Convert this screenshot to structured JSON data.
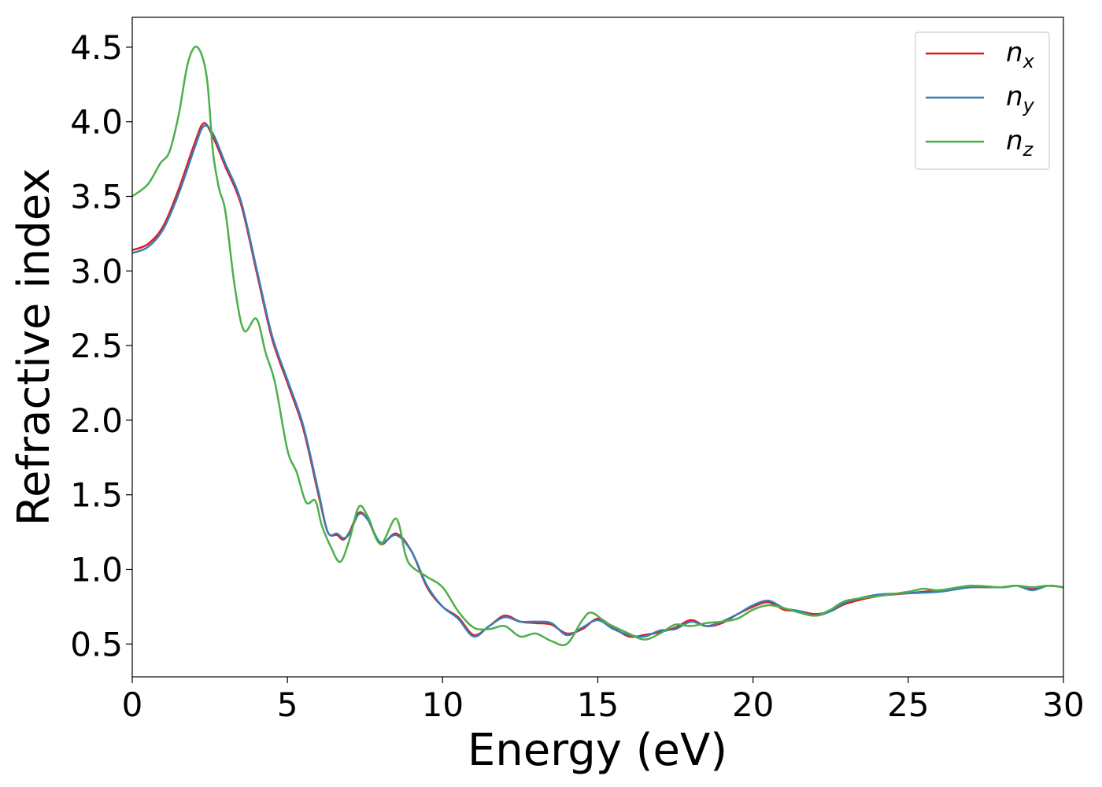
{
  "chart_data": {
    "type": "line",
    "title": "",
    "xlabel": "Energy (eV)",
    "ylabel": "Refractive index",
    "xlim": [
      0,
      30
    ],
    "ylim": [
      0.28,
      4.7
    ],
    "xticks": [
      0,
      5,
      10,
      15,
      20,
      25,
      30
    ],
    "xtick_labels": [
      "0",
      "5",
      "10",
      "15",
      "20",
      "25",
      "30"
    ],
    "yticks": [
      0.5,
      1.0,
      1.5,
      2.0,
      2.5,
      3.0,
      3.5,
      4.0,
      4.5
    ],
    "ytick_labels": [
      "0.5",
      "1.0",
      "1.5",
      "2.0",
      "2.5",
      "3.0",
      "3.5",
      "4.0",
      "4.5"
    ],
    "grid": false,
    "legend_position": "top-right",
    "colors": {
      "n_x": "#e41a1c",
      "n_y": "#377eb8",
      "n_z": "#4daf4a"
    },
    "series": [
      {
        "name": "n_x",
        "symbol": "n",
        "subscript": "x",
        "color": "#e41a1c",
        "x": [
          0,
          0.5,
          1.0,
          1.5,
          2.0,
          2.3,
          2.6,
          3.0,
          3.5,
          4.0,
          4.5,
          5.0,
          5.5,
          6.0,
          6.3,
          6.6,
          6.8,
          7.0,
          7.3,
          7.6,
          8.0,
          8.5,
          9.0,
          9.5,
          10.0,
          10.5,
          11.0,
          11.5,
          12.0,
          12.5,
          13.0,
          13.5,
          14.0,
          14.5,
          15.0,
          15.5,
          16.0,
          16.5,
          17.0,
          17.5,
          18.0,
          18.5,
          19.0,
          19.5,
          20.0,
          20.5,
          21.0,
          21.5,
          22.0,
          22.5,
          23.0,
          24.0,
          25.0,
          26.0,
          27.0,
          28.0,
          28.5,
          29.0,
          29.5,
          30.0
        ],
        "y": [
          3.14,
          3.18,
          3.3,
          3.55,
          3.85,
          3.99,
          3.9,
          3.7,
          3.45,
          3.0,
          2.55,
          2.25,
          1.95,
          1.5,
          1.25,
          1.23,
          1.2,
          1.25,
          1.38,
          1.33,
          1.17,
          1.24,
          1.12,
          0.88,
          0.75,
          0.68,
          0.56,
          0.62,
          0.69,
          0.65,
          0.64,
          0.63,
          0.57,
          0.6,
          0.67,
          0.61,
          0.55,
          0.56,
          0.58,
          0.61,
          0.66,
          0.62,
          0.64,
          0.7,
          0.75,
          0.78,
          0.73,
          0.72,
          0.7,
          0.72,
          0.77,
          0.82,
          0.84,
          0.86,
          0.88,
          0.88,
          0.89,
          0.87,
          0.89,
          0.88
        ]
      },
      {
        "name": "n_y",
        "symbol": "n",
        "subscript": "y",
        "color": "#377eb8",
        "x": [
          0,
          0.5,
          1.0,
          1.5,
          2.0,
          2.3,
          2.6,
          3.0,
          3.5,
          4.0,
          4.5,
          5.0,
          5.5,
          6.0,
          6.3,
          6.6,
          6.8,
          7.0,
          7.3,
          7.6,
          8.0,
          8.5,
          9.0,
          9.5,
          10.0,
          10.5,
          11.0,
          11.5,
          12.0,
          12.5,
          13.0,
          13.5,
          14.0,
          14.5,
          15.0,
          15.5,
          16.0,
          16.5,
          17.0,
          17.5,
          18.0,
          18.5,
          19.0,
          19.5,
          20.0,
          20.5,
          21.0,
          21.5,
          22.0,
          22.5,
          23.0,
          24.0,
          25.0,
          26.0,
          27.0,
          28.0,
          28.5,
          29.0,
          29.5,
          30.0
        ],
        "y": [
          3.12,
          3.16,
          3.28,
          3.52,
          3.82,
          3.97,
          3.92,
          3.72,
          3.47,
          3.02,
          2.57,
          2.27,
          1.97,
          1.52,
          1.25,
          1.24,
          1.21,
          1.24,
          1.37,
          1.33,
          1.18,
          1.23,
          1.12,
          0.89,
          0.75,
          0.67,
          0.55,
          0.62,
          0.68,
          0.65,
          0.65,
          0.64,
          0.56,
          0.61,
          0.66,
          0.6,
          0.56,
          0.55,
          0.59,
          0.6,
          0.65,
          0.62,
          0.65,
          0.7,
          0.76,
          0.79,
          0.74,
          0.72,
          0.69,
          0.72,
          0.78,
          0.83,
          0.84,
          0.85,
          0.88,
          0.88,
          0.89,
          0.86,
          0.89,
          0.88
        ]
      },
      {
        "name": "n_z",
        "symbol": "n",
        "subscript": "z",
        "color": "#4daf4a",
        "x": [
          0,
          0.5,
          0.9,
          1.2,
          1.5,
          1.8,
          2.1,
          2.4,
          2.6,
          2.8,
          3.0,
          3.3,
          3.6,
          4.0,
          4.3,
          4.6,
          5.0,
          5.3,
          5.6,
          5.9,
          6.1,
          6.4,
          6.7,
          7.0,
          7.3,
          7.6,
          8.0,
          8.5,
          8.8,
          9.0,
          9.5,
          10.0,
          10.5,
          11.0,
          11.5,
          12.0,
          12.5,
          13.0,
          13.5,
          14.0,
          14.5,
          14.8,
          15.3,
          16.0,
          16.5,
          17.0,
          17.5,
          18.0,
          18.5,
          19.0,
          19.5,
          20.0,
          20.5,
          21.0,
          21.5,
          22.0,
          22.5,
          23.0,
          24.0,
          25.0,
          25.5,
          26.0,
          27.0,
          28.0,
          28.5,
          29.0,
          29.5,
          30.0
        ],
        "y": [
          3.5,
          3.58,
          3.72,
          3.8,
          4.05,
          4.4,
          4.5,
          4.3,
          3.8,
          3.55,
          3.4,
          2.9,
          2.6,
          2.68,
          2.45,
          2.25,
          1.8,
          1.65,
          1.45,
          1.46,
          1.3,
          1.15,
          1.05,
          1.2,
          1.42,
          1.35,
          1.17,
          1.34,
          1.1,
          1.02,
          0.95,
          0.88,
          0.72,
          0.61,
          0.6,
          0.62,
          0.55,
          0.57,
          0.52,
          0.5,
          0.66,
          0.71,
          0.64,
          0.57,
          0.53,
          0.57,
          0.63,
          0.62,
          0.64,
          0.65,
          0.67,
          0.73,
          0.76,
          0.74,
          0.71,
          0.69,
          0.73,
          0.79,
          0.82,
          0.85,
          0.87,
          0.86,
          0.89,
          0.88,
          0.89,
          0.88,
          0.89,
          0.88
        ]
      }
    ]
  }
}
